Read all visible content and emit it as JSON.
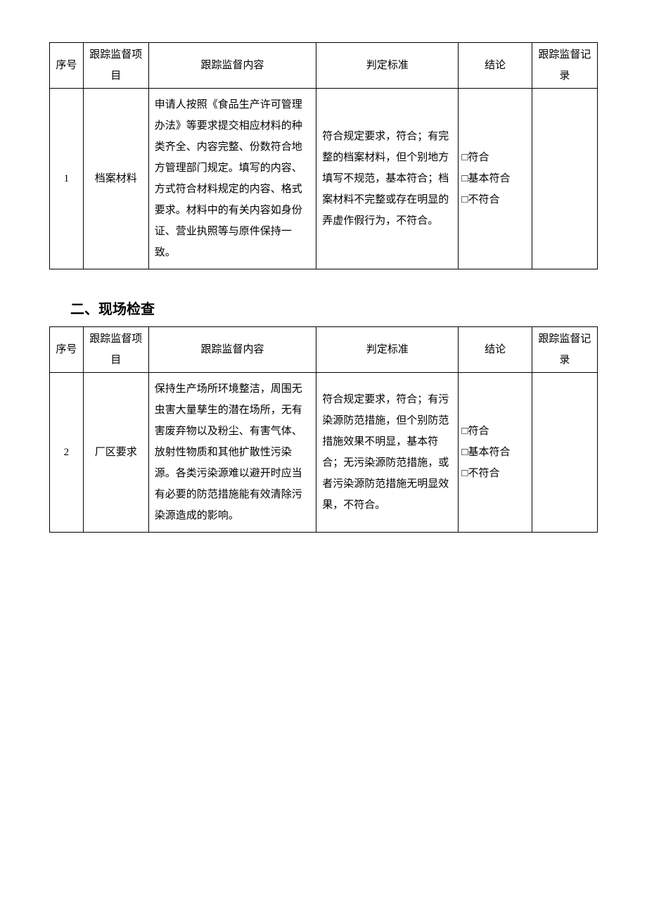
{
  "table1": {
    "headers": {
      "seq": "序号",
      "proj": "跟踪监督项目",
      "content": "跟踪监督内容",
      "criteria": "判定标准",
      "result": "结论",
      "record": "跟踪监督记录"
    },
    "row": {
      "seq": "1",
      "proj": "档案材料",
      "content": "申请人按照《食品生产许可管理办法》等要求提交相应材料的种类齐全、内容完整、份数符合地方管理部门规定。填写的内容、方式符合材料规定的内容、格式要求。材料中的有关内容如身份证、营业执照等与原件保持一致。",
      "criteria": "符合规定要求，符合；有完整的档案材料，但个别地方填写不规范，基本符合；档案材料不完整或存在明显的弄虚作假行为，不符合。",
      "result1": "□符合",
      "result2": "□基本符合",
      "result3": "□不符合",
      "record": ""
    }
  },
  "section2_heading": "二、现场检查",
  "table2": {
    "headers": {
      "seq": "序号",
      "proj": "跟踪监督项目",
      "content": "跟踪监督内容",
      "criteria": "判定标准",
      "result": "结论",
      "record": "跟踪监督记录"
    },
    "row": {
      "seq": "2",
      "proj": "厂区要求",
      "content": "保持生产场所环境整洁，周围无虫害大量孳生的潜在场所，无有害废弃物以及粉尘、有害气体、放射性物质和其他扩散性污染源。各类污染源难以避开时应当有必要的防范措施能有效清除污染源造成的影响。",
      "criteria": "符合规定要求，符合；有污染源防范措施，但个别防范措施效果不明显，基本符合；无污染源防范措施，或者污染源防范措施无明显效果，不符合。",
      "result1": "□符合",
      "result2": "□基本符合",
      "result3": "□不符合",
      "record": ""
    }
  },
  "colors": {
    "text": "#000000",
    "border": "#000000",
    "background": "#ffffff"
  }
}
